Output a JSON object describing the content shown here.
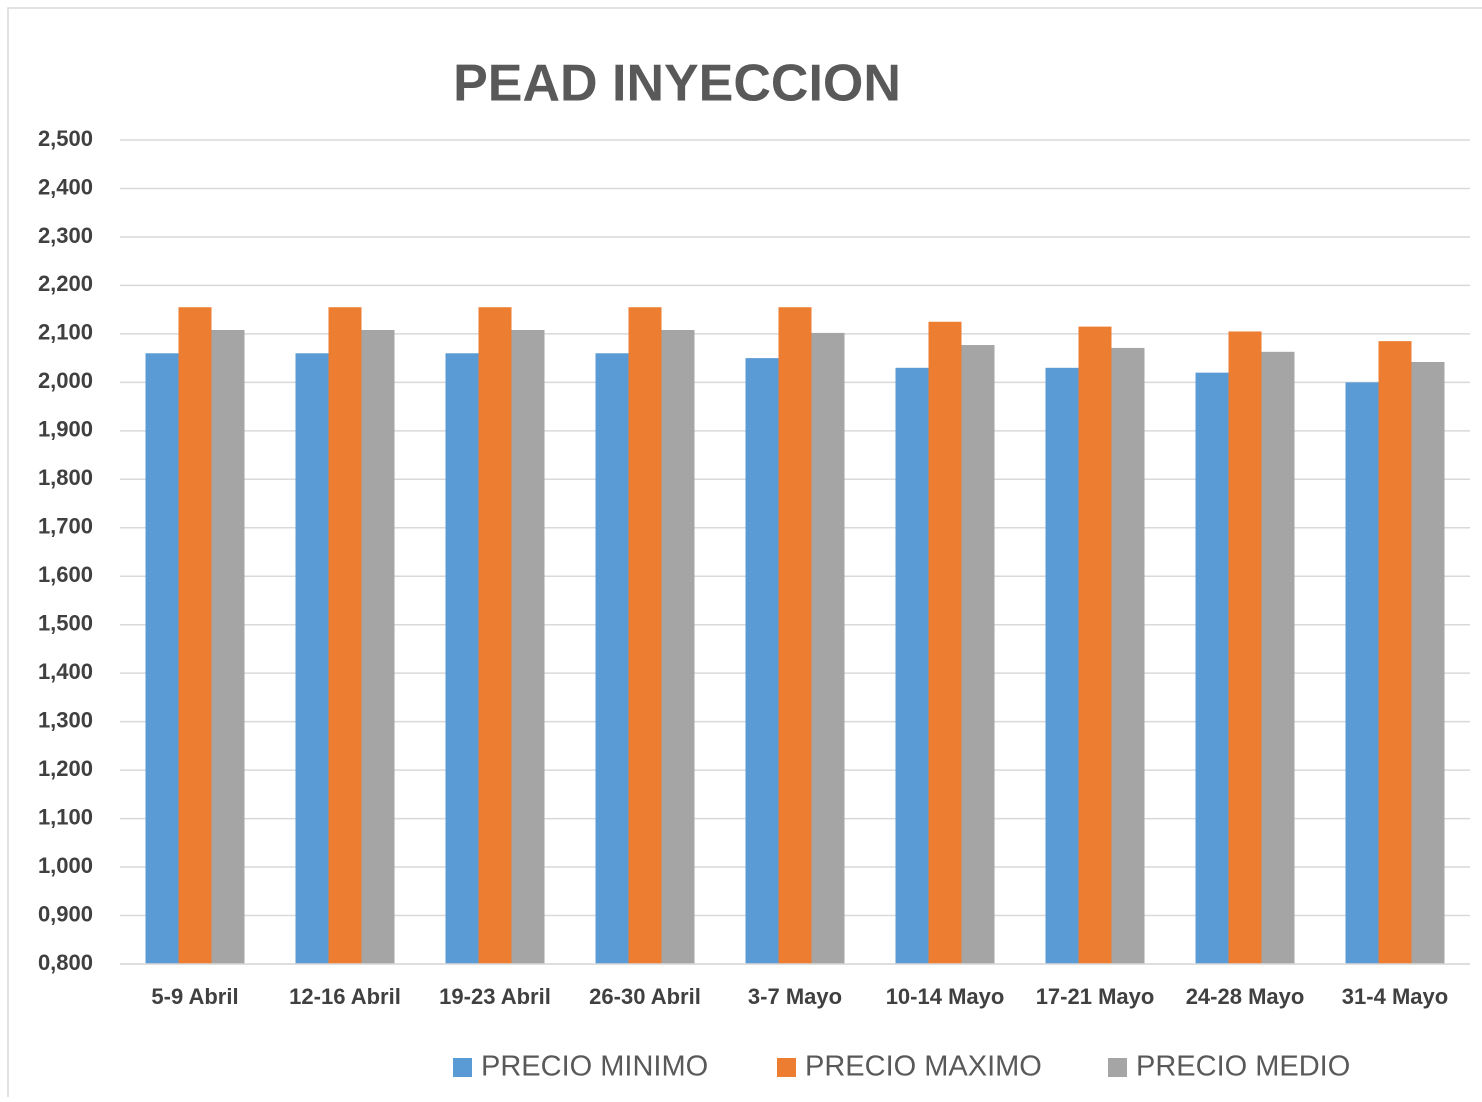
{
  "chart_data": {
    "type": "bar",
    "title": "PEAD   INYECCION",
    "categories": [
      "5-9 Abril",
      "12-16 Abril",
      "19-23 Abril",
      "26-30 Abril",
      "3-7 Mayo",
      "10-14 Mayo",
      "17-21 Mayo",
      "24-28 Mayo",
      "31-4 Mayo"
    ],
    "series": [
      {
        "name": "PRECIO MINIMO",
        "color": "#5b9bd5",
        "values": [
          2.06,
          2.06,
          2.06,
          2.06,
          2.05,
          2.03,
          2.03,
          2.02,
          2.0
        ]
      },
      {
        "name": "PRECIO MAXIMO",
        "color": "#ed7d31",
        "values": [
          2.155,
          2.155,
          2.155,
          2.155,
          2.155,
          2.125,
          2.115,
          2.105,
          2.085
        ]
      },
      {
        "name": "PRECIO MEDIO",
        "color": "#a5a5a5",
        "values": [
          2.108,
          2.108,
          2.108,
          2.108,
          2.102,
          2.077,
          2.071,
          2.063,
          2.042
        ]
      }
    ],
    "ylim": [
      0.8,
      2.5
    ],
    "yticks": [
      {
        "value": 0.8,
        "label": "0,800"
      },
      {
        "value": 0.9,
        "label": "0,900"
      },
      {
        "value": 1.0,
        "label": "1,000"
      },
      {
        "value": 1.1,
        "label": "1,100"
      },
      {
        "value": 1.2,
        "label": "1,200"
      },
      {
        "value": 1.3,
        "label": "1,300"
      },
      {
        "value": 1.4,
        "label": "1,400"
      },
      {
        "value": 1.5,
        "label": "1,500"
      },
      {
        "value": 1.6,
        "label": "1,600"
      },
      {
        "value": 1.7,
        "label": "1,700"
      },
      {
        "value": 1.8,
        "label": "1,800"
      },
      {
        "value": 1.9,
        "label": "1,900"
      },
      {
        "value": 2.0,
        "label": "2,000"
      },
      {
        "value": 2.1,
        "label": "2,100"
      },
      {
        "value": 2.2,
        "label": "2,200"
      },
      {
        "value": 2.3,
        "label": "2,300"
      },
      {
        "value": 2.4,
        "label": "2,400"
      },
      {
        "value": 2.5,
        "label": "2,500"
      }
    ],
    "grid": true,
    "legend": "bottom"
  }
}
